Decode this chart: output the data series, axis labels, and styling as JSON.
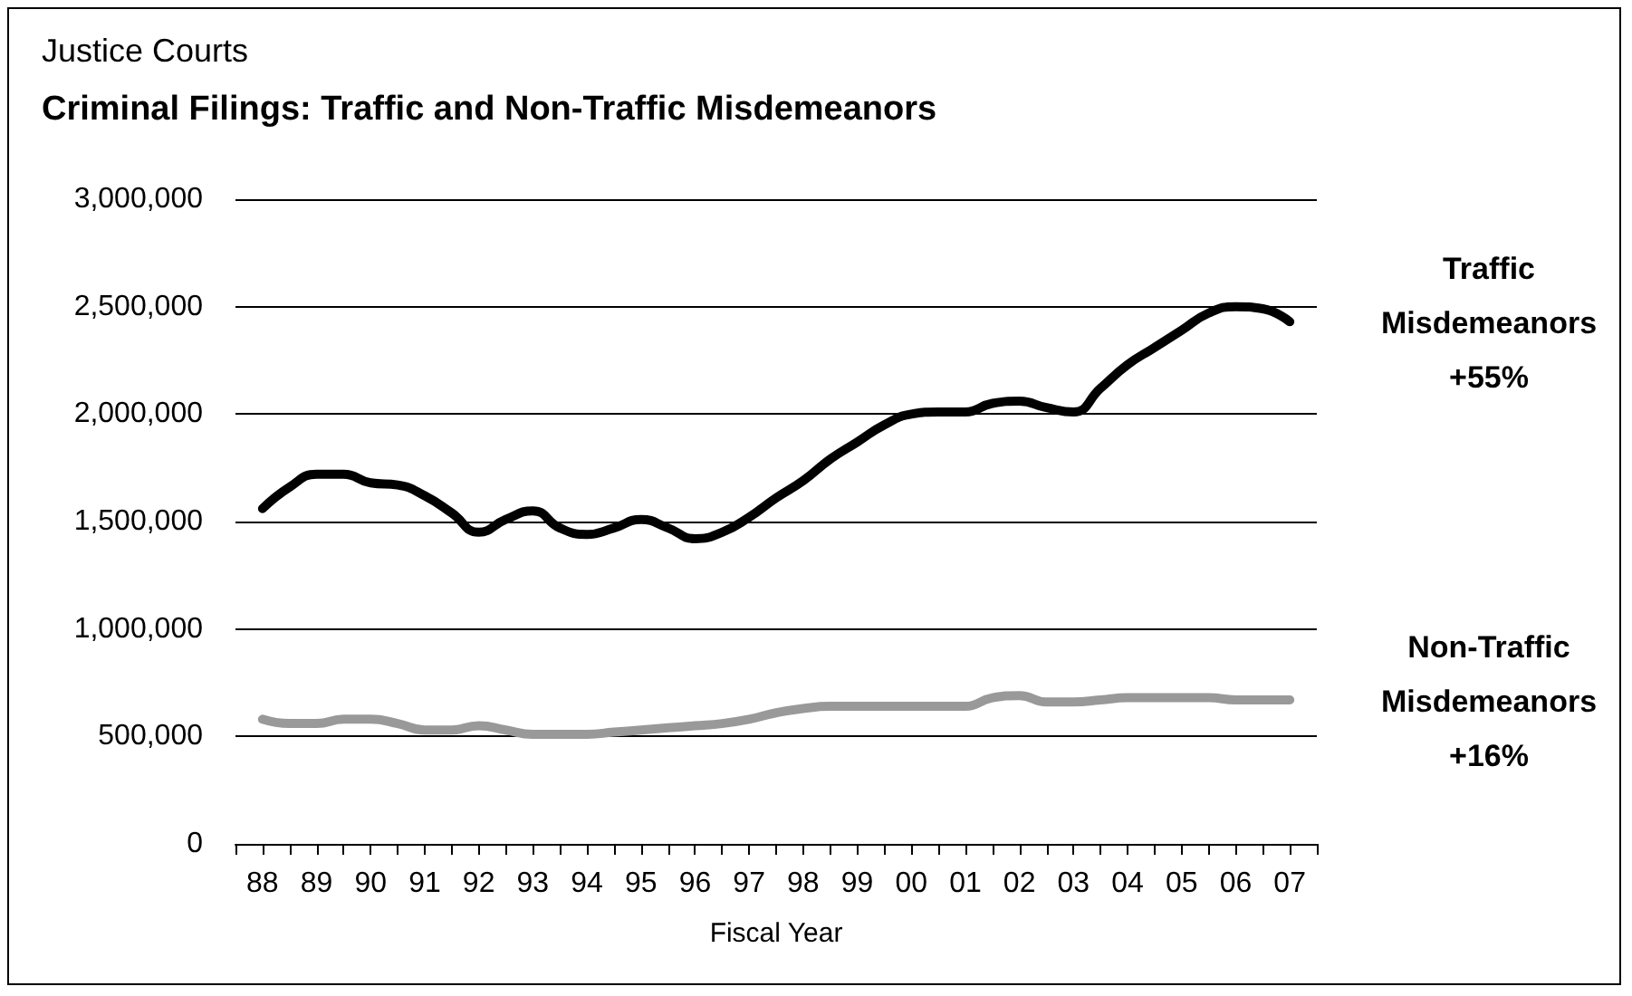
{
  "chart_data": {
    "type": "line",
    "title": "Justice Courts",
    "subtitle": "Criminal Filings: Traffic and Non-Traffic Misdemeanors",
    "xlabel": "Fiscal Year",
    "x": [
      1988,
      1988.5,
      1989,
      1989.5,
      1990,
      1990.5,
      1991,
      1991.5,
      1992,
      1992.5,
      1993,
      1993.5,
      1994,
      1994.5,
      1995,
      1995.5,
      1996,
      1996.5,
      1997,
      1997.5,
      1998,
      1998.5,
      1999,
      1999.5,
      2000,
      2000.5,
      2001,
      2001.5,
      2002,
      2002.5,
      2003,
      2003.5,
      2004,
      2004.5,
      2005,
      2005.5,
      2006,
      2006.5,
      2007
    ],
    "series": [
      {
        "name": "Traffic Misdemeanors",
        "color": "#000000",
        "values": [
          1560000,
          1660000,
          1720000,
          1720000,
          1680000,
          1670000,
          1620000,
          1540000,
          1450000,
          1510000,
          1550000,
          1470000,
          1440000,
          1470000,
          1510000,
          1470000,
          1420000,
          1450000,
          1520000,
          1610000,
          1690000,
          1790000,
          1870000,
          1950000,
          2000000,
          2010000,
          2010000,
          2050000,
          2060000,
          2030000,
          2010000,
          2120000,
          2230000,
          2310000,
          2390000,
          2470000,
          2500000,
          2490000,
          2430000
        ]
      },
      {
        "name": "Non-Traffic Misdemeanors",
        "color": "#999999",
        "values": [
          580000,
          560000,
          560000,
          580000,
          580000,
          560000,
          530000,
          530000,
          550000,
          530000,
          510000,
          510000,
          510000,
          520000,
          530000,
          540000,
          550000,
          560000,
          580000,
          610000,
          630000,
          640000,
          640000,
          640000,
          640000,
          640000,
          640000,
          680000,
          690000,
          660000,
          660000,
          670000,
          680000,
          680000,
          680000,
          680000,
          670000,
          670000,
          670000
        ]
      }
    ],
    "annotations": [
      "+55%",
      "+16%"
    ],
    "xlim": [
      1987.5,
      2007.5
    ],
    "xticks": [
      {
        "value": 1987.5,
        "label": null
      },
      {
        "value": 1988,
        "label": "88"
      },
      {
        "value": 1988.5,
        "label": null
      },
      {
        "value": 1989,
        "label": "89"
      },
      {
        "value": 1989.5,
        "label": null
      },
      {
        "value": 1990,
        "label": "90"
      },
      {
        "value": 1990.5,
        "label": null
      },
      {
        "value": 1991,
        "label": "91"
      },
      {
        "value": 1991.5,
        "label": null
      },
      {
        "value": 1992,
        "label": "92"
      },
      {
        "value": 1992.5,
        "label": null
      },
      {
        "value": 1993,
        "label": "93"
      },
      {
        "value": 1993.5,
        "label": null
      },
      {
        "value": 1994,
        "label": "94"
      },
      {
        "value": 1994.5,
        "label": null
      },
      {
        "value": 1995,
        "label": "95"
      },
      {
        "value": 1995.5,
        "label": null
      },
      {
        "value": 1996,
        "label": "96"
      },
      {
        "value": 1996.5,
        "label": null
      },
      {
        "value": 1997,
        "label": "97"
      },
      {
        "value": 1997.5,
        "label": null
      },
      {
        "value": 1998,
        "label": "98"
      },
      {
        "value": 1998.5,
        "label": null
      },
      {
        "value": 1999,
        "label": "99"
      },
      {
        "value": 1999.5,
        "label": null
      },
      {
        "value": 2000,
        "label": "00"
      },
      {
        "value": 2000.5,
        "label": null
      },
      {
        "value": 2001,
        "label": "01"
      },
      {
        "value": 2001.5,
        "label": null
      },
      {
        "value": 2002,
        "label": "02"
      },
      {
        "value": 2002.5,
        "label": null
      },
      {
        "value": 2003,
        "label": "03"
      },
      {
        "value": 2003.5,
        "label": null
      },
      {
        "value": 2004,
        "label": "04"
      },
      {
        "value": 2004.5,
        "label": null
      },
      {
        "value": 2005,
        "label": "05"
      },
      {
        "value": 2005.5,
        "label": null
      },
      {
        "value": 2006,
        "label": "06"
      },
      {
        "value": 2006.5,
        "label": null
      },
      {
        "value": 2007,
        "label": "07"
      },
      {
        "value": 2007.5,
        "label": null
      }
    ],
    "ylim": [
      0,
      3000000
    ],
    "yticks": [
      {
        "value": 0,
        "label": "0"
      },
      {
        "value": 500000,
        "label": "500,000"
      },
      {
        "value": 1000000,
        "label": "1,000,000"
      },
      {
        "value": 1500000,
        "label": "1,500,000"
      },
      {
        "value": 2000000,
        "label": "2,000,000"
      },
      {
        "value": 2500000,
        "label": "2,500,000"
      },
      {
        "value": 3000000,
        "label": "3,000,000"
      }
    ],
    "grid": "y",
    "legend": false,
    "marker": "none",
    "line_style": "solid"
  }
}
